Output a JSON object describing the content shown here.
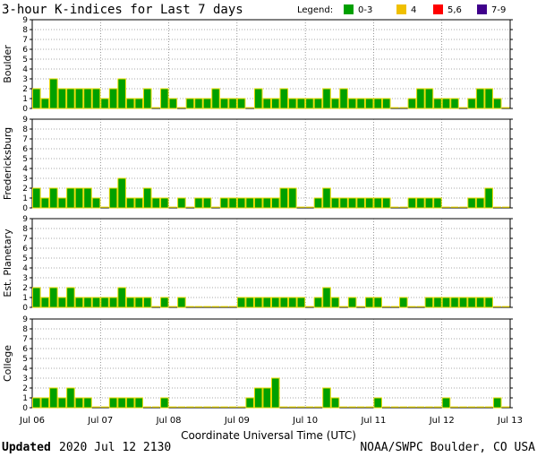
{
  "title": "3-hour K-indices for Last 7 days",
  "legend": {
    "label": "Legend:",
    "items": [
      {
        "label": "0-3",
        "color": "#00a000"
      },
      {
        "label": "4",
        "color": "#f0c000"
      },
      {
        "label": "5,6",
        "color": "#ff0000"
      },
      {
        "label": "7-9",
        "color": "#40008c"
      }
    ]
  },
  "footer": {
    "updated_label": "Updated",
    "updated_value": "2020 Jul 12 2130",
    "credit": "NOAA/SWPC Boulder, CO USA"
  },
  "chart_data": {
    "type": "bar",
    "xlabel": "Coordinate Universal Time (UTC)",
    "x_ticks": [
      "Jul 06",
      "Jul 07",
      "Jul 08",
      "Jul 09",
      "Jul 10",
      "Jul 11",
      "Jul 12",
      "Jul 13"
    ],
    "ylim": [
      0,
      9
    ],
    "y_ticks": [
      0,
      1,
      2,
      3,
      4,
      5,
      6,
      7,
      8,
      9
    ],
    "grid": true,
    "bar_color": "#00a000",
    "bar_edge_color": "#e8d800",
    "intervals_per_day": 8,
    "panels": [
      {
        "name": "Boulder",
        "values": [
          2,
          1,
          3,
          2,
          2,
          2,
          2,
          2,
          1,
          2,
          3,
          1,
          1,
          2,
          0,
          2,
          1,
          0,
          1,
          1,
          1,
          2,
          1,
          1,
          1,
          0,
          2,
          1,
          1,
          2,
          1,
          1,
          1,
          1,
          2,
          1,
          2,
          1,
          1,
          1,
          1,
          1,
          0,
          0,
          1,
          2,
          2,
          1,
          1,
          1,
          0,
          1,
          2,
          2,
          1,
          0
        ]
      },
      {
        "name": "Fredericksburg",
        "values": [
          2,
          1,
          2,
          1,
          2,
          2,
          2,
          1,
          0,
          2,
          3,
          1,
          1,
          2,
          1,
          1,
          0,
          1,
          0,
          1,
          1,
          0,
          1,
          1,
          1,
          1,
          1,
          1,
          1,
          2,
          2,
          0,
          0,
          1,
          2,
          1,
          1,
          1,
          1,
          1,
          1,
          1,
          0,
          0,
          1,
          1,
          1,
          1,
          0,
          0,
          0,
          1,
          1,
          2,
          0,
          0
        ]
      },
      {
        "name": "Est. Planetary",
        "values": [
          2,
          1,
          2,
          1,
          2,
          1,
          1,
          1,
          1,
          1,
          2,
          1,
          1,
          1,
          0,
          1,
          0,
          1,
          0,
          0,
          0,
          0,
          0,
          0,
          1,
          1,
          1,
          1,
          1,
          1,
          1,
          1,
          0,
          1,
          2,
          1,
          0,
          1,
          0,
          1,
          1,
          0,
          0,
          1,
          0,
          0,
          1,
          1,
          1,
          1,
          1,
          1,
          1,
          1,
          0,
          0
        ]
      },
      {
        "name": "College",
        "values": [
          1,
          1,
          2,
          1,
          2,
          1,
          1,
          0,
          0,
          1,
          1,
          1,
          1,
          0,
          0,
          1,
          0,
          0,
          0,
          0,
          0,
          0,
          0,
          0,
          0,
          1,
          2,
          2,
          3,
          0,
          0,
          0,
          0,
          0,
          2,
          1,
          0,
          0,
          0,
          0,
          1,
          0,
          0,
          0,
          0,
          0,
          0,
          0,
          1,
          0,
          0,
          0,
          0,
          0,
          1,
          0
        ]
      }
    ]
  }
}
